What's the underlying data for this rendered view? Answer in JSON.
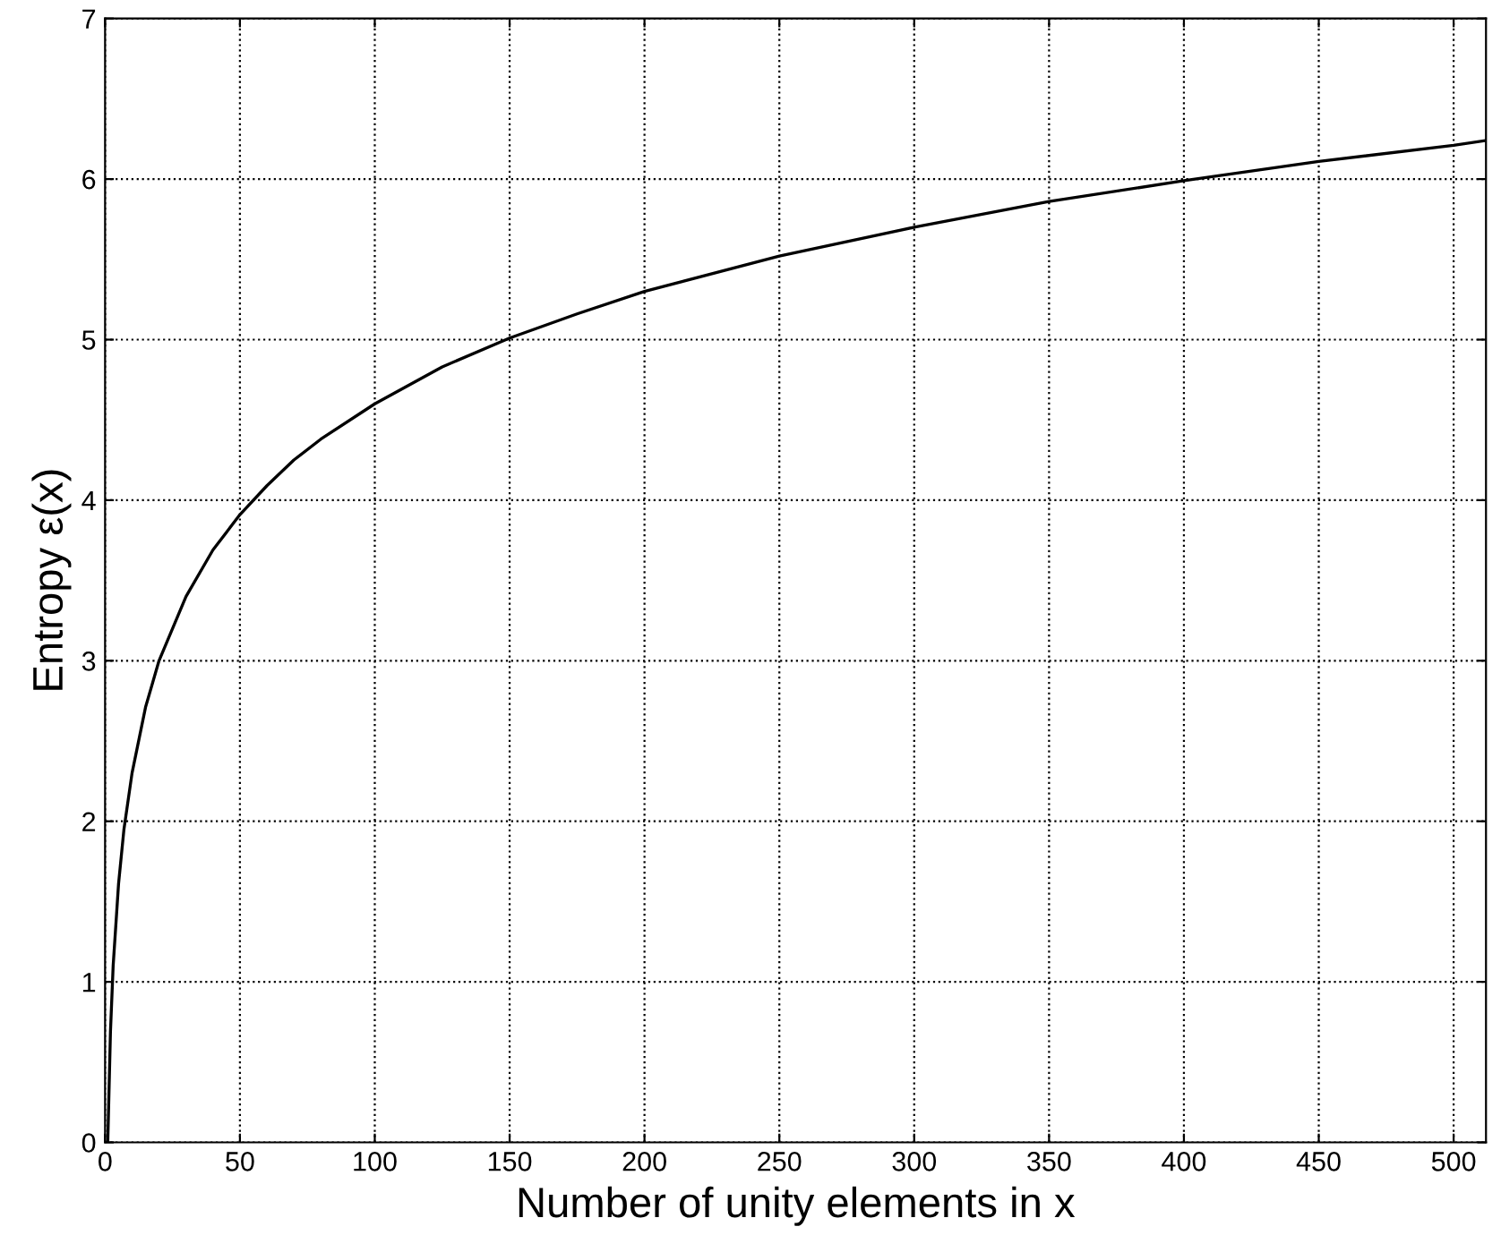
{
  "chart_data": {
    "type": "line",
    "xlabel": "Number of unity elements in x",
    "ylabel": "Entropy ε(x)",
    "x": [
      1,
      2,
      3,
      5,
      7,
      10,
      15,
      20,
      30,
      40,
      50,
      60,
      70,
      80,
      100,
      125,
      150,
      175,
      200,
      250,
      300,
      350,
      400,
      450,
      500,
      512
    ],
    "series": [
      {
        "color": "#000000",
        "values": [
          0,
          0.69,
          1.1,
          1.61,
          1.95,
          2.3,
          2.71,
          3.0,
          3.4,
          3.69,
          3.91,
          4.09,
          4.25,
          4.38,
          4.6,
          4.83,
          5.01,
          5.16,
          5.3,
          5.52,
          5.7,
          5.86,
          5.99,
          6.11,
          6.21,
          6.24
        ]
      }
    ],
    "xlim": [
      0,
      512
    ],
    "xticks": [
      0,
      50,
      100,
      150,
      200,
      250,
      300,
      350,
      400,
      450,
      500
    ],
    "ylim": [
      0,
      7
    ],
    "yticks": [
      0,
      1,
      2,
      3,
      4,
      5,
      6,
      7
    ],
    "grid": true,
    "line_style": "solid",
    "marker": "none"
  }
}
